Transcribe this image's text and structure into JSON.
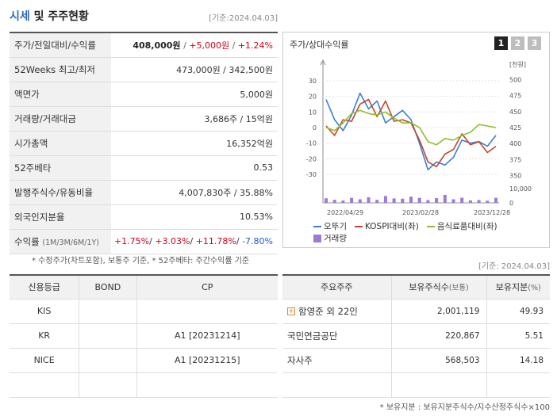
{
  "header": {
    "title_accent": "시세",
    "title_rest": " 및 주주현황",
    "date": "[기준:2024.04.03]"
  },
  "quote": {
    "price_label": "주가/전일대비/수익률",
    "price": "408,000원",
    "change": "+5,000원",
    "change_pct": "+1.24%",
    "weeks52_label": "52Weeks 최고/최저",
    "weeks52": "473,000원 / 342,500원",
    "par_label": "액면가",
    "par": "5,000원",
    "volume_label": "거래량/거래대금",
    "volume": "3,686주 / 15억원",
    "mcap_label": "시가총액",
    "mcap": "16,352억원",
    "beta_label": "52주베타",
    "beta": "0.53",
    "shares_label": "발행주식수/유동비율",
    "shares": "4,007,830주 / 35.88%",
    "foreign_label": "외국인지분율",
    "foreign": "10.53%",
    "return_label": "수익률",
    "return_sub": "(1M/3M/6M/1Y)",
    "r1m": "+1.75%",
    "r3m": "+3.03%",
    "r6m": "+11.78%",
    "r1y": "-7.80%"
  },
  "note_left": "* 수정주가(차트포함), 보통주 기준, * 52주베타: 주간수익률 기준",
  "chart_panel": {
    "title": "주가/상대수익률",
    "pages": [
      "1",
      "2",
      "3"
    ]
  },
  "chart_data": {
    "type": "line",
    "left_axis": {
      "ticks": [
        30,
        20,
        10,
        0,
        -10,
        -20,
        -30
      ],
      "range": [
        -34,
        34
      ]
    },
    "right_axis": {
      "unit": "[천원]",
      "ticks": [
        500,
        475,
        450,
        425,
        400,
        375,
        350
      ],
      "range": [
        342,
        508
      ]
    },
    "volume_axis": {
      "ticks": [
        "10,000",
        "0"
      ],
      "max": 10000
    },
    "x_labels": [
      "2022/04/29",
      "2023/02/28",
      "2023/12/28"
    ],
    "series": [
      {
        "name": "오뚜기",
        "color": "#3a7fd4",
        "axis": "left",
        "values": [
          18,
          5,
          -2,
          8,
          22,
          12,
          17,
          3,
          7,
          11,
          5,
          -10,
          -27,
          -22,
          -24,
          -19,
          -8,
          -10,
          -9,
          -12,
          -5
        ]
      },
      {
        "name": "KOSPI대비(좌)",
        "color": "#c8442b",
        "axis": "left",
        "values": [
          1,
          -5,
          5,
          4,
          15,
          18,
          7,
          17,
          4,
          5,
          3,
          -8,
          -22,
          -25,
          -17,
          -14,
          -4,
          -11,
          -9,
          -16,
          -12
        ]
      },
      {
        "name": "음식료품대비(좌)",
        "color": "#8fbf2a",
        "axis": "left",
        "values": [
          0,
          -2,
          3,
          9,
          11,
          9,
          8,
          10,
          6,
          3,
          3,
          0,
          -9,
          -11,
          -7,
          -8,
          -5,
          -3,
          2,
          1,
          0
        ]
      }
    ],
    "volume": {
      "name": "거래량",
      "color": "#9c7ad6",
      "values": [
        3200,
        2100,
        1600,
        3500,
        2500,
        3900,
        2100,
        4800,
        3100,
        2900,
        4400,
        3500,
        1900,
        3300,
        5600,
        2500,
        3600,
        1700,
        2000,
        1500,
        3500
      ]
    }
  },
  "date_right": "[기준: 2024.04.03]",
  "credit": {
    "headers": [
      "신용등급",
      "BOND",
      "CP"
    ],
    "rows": [
      {
        "agency": "KIS",
        "bond": "",
        "cp": ""
      },
      {
        "agency": "KR",
        "bond": "",
        "cp": "A1 [20231214]"
      },
      {
        "agency": "NICE",
        "bond": "",
        "cp": "A1 [20231215]"
      },
      {
        "agency": "",
        "bond": "",
        "cp": ""
      }
    ]
  },
  "holders": {
    "headers": [
      "주요주주",
      "보유주식수",
      "(보통)",
      "보유지분",
      "(%)"
    ],
    "rows": [
      {
        "name": "함영준 외 22인",
        "shares": "2,001,119",
        "pct": "49.93"
      },
      {
        "name": "국민연금공단",
        "shares": "220,867",
        "pct": "5.51"
      },
      {
        "name": "자사주",
        "shares": "568,503",
        "pct": "14.18"
      },
      {
        "name": "",
        "shares": "",
        "pct": ""
      }
    ]
  },
  "note_right": "* 보유지분 : 보유지분주식수/지수산정주식수×100"
}
